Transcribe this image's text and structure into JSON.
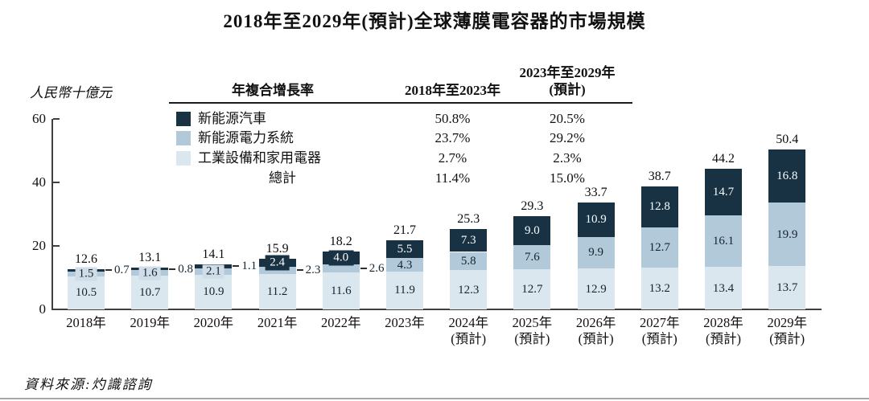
{
  "title": "2018年至2029年(預計)全球薄膜電容器的市場規模",
  "y_axis_unit": "人民幣十億元",
  "source": "資料來源:灼識諮詢",
  "palette": {
    "dark": "#193243",
    "medium": "#b2c9da",
    "light": "#dbe7ef",
    "overlay_label_bg": "#cfdde9"
  },
  "legend_table": {
    "header_cagr": "年複合增長率",
    "header_period1": "2018年至2023年",
    "header_period2_line1": "2023年至2029年",
    "header_period2_line2": "(預計)",
    "rows": [
      {
        "label": "新能源汽車",
        "swatch": "dark",
        "period1": "50.8%",
        "period2": "20.5%"
      },
      {
        "label": "新能源電力系統",
        "swatch": "medium",
        "period1": "23.7%",
        "period2": "29.2%"
      },
      {
        "label": "工業設備和家用電器",
        "swatch": "light",
        "period1": "2.7%",
        "period2": "2.3%"
      },
      {
        "label": "總計",
        "swatch": null,
        "period1": "11.4%",
        "period2": "15.0%"
      }
    ]
  },
  "chart_data": {
    "type": "bar",
    "stacked": true,
    "title": "2018年至2029年(預計)全球薄膜電容器的市場規模",
    "ylabel": "人民幣十億元",
    "ylim": [
      0,
      60
    ],
    "yticks": [
      0,
      20,
      40,
      60
    ],
    "grid": false,
    "legend_position": "top-left-table",
    "categories": [
      {
        "label": "2018年",
        "sublabel": ""
      },
      {
        "label": "2019年",
        "sublabel": ""
      },
      {
        "label": "2020年",
        "sublabel": ""
      },
      {
        "label": "2021年",
        "sublabel": ""
      },
      {
        "label": "2022年",
        "sublabel": ""
      },
      {
        "label": "2023年",
        "sublabel": ""
      },
      {
        "label": "2024年",
        "sublabel": "(預計)"
      },
      {
        "label": "2025年",
        "sublabel": "(預計)"
      },
      {
        "label": "2026年",
        "sublabel": "(預計)"
      },
      {
        "label": "2027年",
        "sublabel": "(預計)"
      },
      {
        "label": "2028年",
        "sublabel": "(預計)"
      },
      {
        "label": "2029年",
        "sublabel": "(預計)"
      }
    ],
    "series": [
      {
        "name": "工業設備和家用電器",
        "key": "light",
        "values": [
          10.5,
          10.7,
          10.9,
          11.2,
          11.6,
          11.9,
          12.3,
          12.7,
          12.9,
          13.2,
          13.4,
          13.7
        ]
      },
      {
        "name": "新能源電力系統",
        "key": "medium",
        "values": [
          1.5,
          1.6,
          2.1,
          2.3,
          2.6,
          4.3,
          5.8,
          7.6,
          9.9,
          12.7,
          16.1,
          19.9
        ]
      },
      {
        "name": "新能源汽車",
        "key": "dark",
        "values": [
          0.7,
          0.8,
          1.1,
          2.4,
          4.0,
          5.5,
          7.3,
          9.0,
          10.9,
          12.8,
          14.7,
          16.8
        ]
      }
    ],
    "totals": [
      12.6,
      13.1,
      14.1,
      15.9,
      18.2,
      21.7,
      25.3,
      29.3,
      33.7,
      38.7,
      44.2,
      50.4
    ],
    "label_modes": [
      {
        "medium": "overlay",
        "dark": "callout"
      },
      {
        "medium": "overlay",
        "dark": "callout"
      },
      {
        "medium": "overlay",
        "dark": "callout"
      },
      {
        "medium": "callout",
        "dark": "overlay"
      },
      {
        "medium": "callout",
        "dark": "overlay"
      },
      {
        "medium": "inside",
        "dark": "inside"
      },
      {
        "medium": "inside",
        "dark": "inside"
      },
      {
        "medium": "inside",
        "dark": "inside"
      },
      {
        "medium": "inside",
        "dark": "inside"
      },
      {
        "medium": "inside",
        "dark": "inside"
      },
      {
        "medium": "inside",
        "dark": "inside"
      },
      {
        "medium": "inside",
        "dark": "inside"
      }
    ]
  }
}
